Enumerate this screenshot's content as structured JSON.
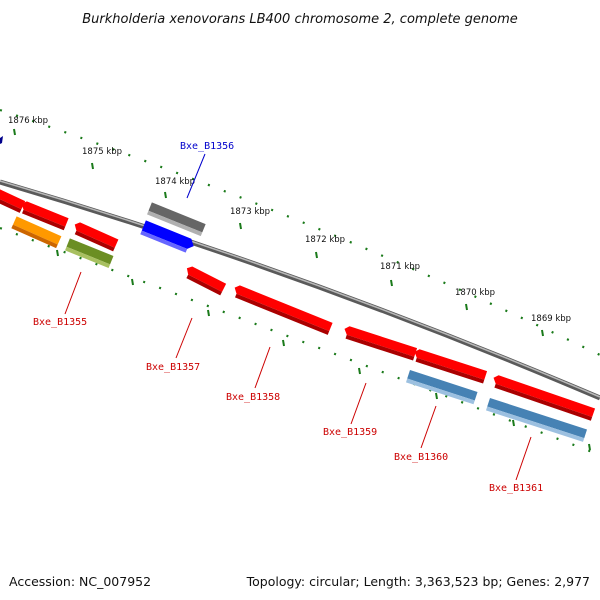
{
  "title": "Burkholderia xenovorans LB400 chromosome 2, complete genome",
  "footer": {
    "accession": "Accession: NC_007952",
    "summary": "Topology: circular; Length: 3,363,523 bp; Genes: 2,977"
  },
  "colors": {
    "backbone": "#808080",
    "tick": "#1a7a1a",
    "label_red": "#cc0000",
    "label_blue": "#0000cc",
    "gene_red": "#ff0000",
    "gene_orange": "#ff9900",
    "gene_olive": "#6b8e23",
    "gene_gray": "#666666",
    "gene_blue": "#0000ff",
    "gene_steel": "#4682b4"
  },
  "scale": {
    "ticks": [
      {
        "label": "1876 kbp"
      },
      {
        "label": "1875 kbp"
      },
      {
        "label": "1874 kbp"
      },
      {
        "label": "1873 kbp"
      },
      {
        "label": "1872 kbp"
      },
      {
        "label": "1871 kbp"
      },
      {
        "label": "1870 kbp"
      },
      {
        "label": "1869 kbp"
      }
    ]
  },
  "labels": [
    {
      "text": "Bxe_B1356",
      "color": "blue"
    },
    {
      "text": "Bxe_B1355",
      "color": "red"
    },
    {
      "text": "Bxe_B1357",
      "color": "red"
    },
    {
      "text": "Bxe_B1358",
      "color": "red"
    },
    {
      "text": "Bxe_B1359",
      "color": "red"
    },
    {
      "text": "Bxe_B1360",
      "color": "red"
    },
    {
      "text": "Bxe_B1361",
      "color": "red"
    }
  ]
}
